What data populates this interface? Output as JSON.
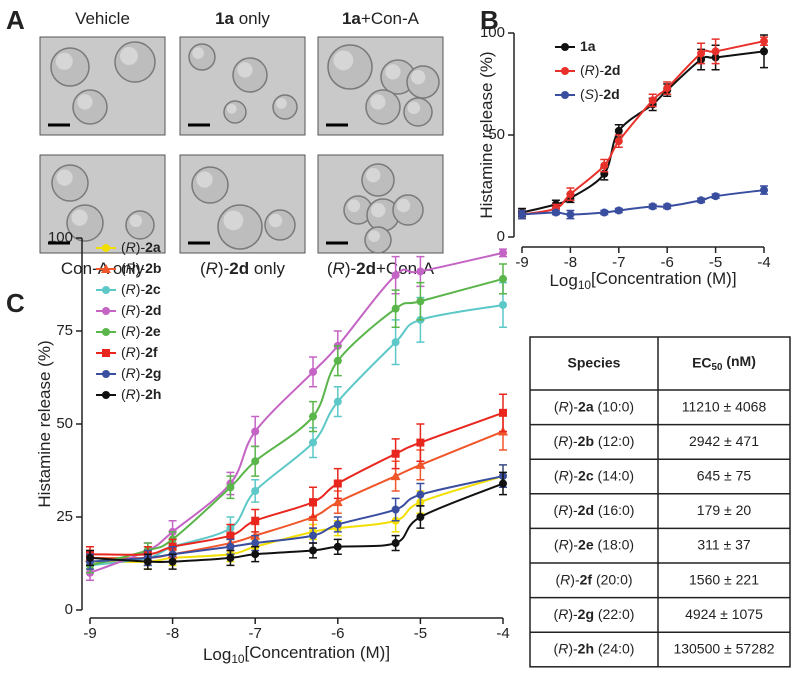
{
  "panel_a": {
    "letter": "A",
    "images": [
      {
        "label": "Vehicle"
      },
      {
        "label": "1a only"
      },
      {
        "label": "1a+Con-A"
      },
      {
        "label": "Con-A only"
      },
      {
        "label": "(R)-2d only"
      },
      {
        "label": "(R)-2d+Con-A"
      }
    ]
  },
  "chart_data": [
    {
      "panel": "B",
      "type": "line",
      "xlabel": "Log10[Concentration (M)]",
      "ylabel": "Histamine release (%)",
      "x": [
        -9,
        -8.3,
        -8,
        -7.3,
        -7,
        -6.3,
        -6,
        -5.3,
        -5,
        -4
      ],
      "xlim": [
        -9,
        -4
      ],
      "xticks": [
        -9,
        -8,
        -7,
        -6,
        -5,
        -4
      ],
      "ylim": [
        0,
        100
      ],
      "yticks": [
        0,
        50,
        100
      ],
      "legend": "upper left",
      "series": [
        {
          "name": "1a",
          "color": "#111111",
          "marker": "circle",
          "values": [
            12,
            16,
            19,
            31,
            52,
            65,
            72,
            87,
            88,
            91
          ],
          "errors": [
            2,
            2,
            2,
            3,
            3,
            3,
            3,
            5,
            6,
            8
          ]
        },
        {
          "name": "(R)-2d",
          "color": "#e8312a",
          "marker": "circle",
          "values": [
            11,
            14,
            21,
            35,
            47,
            67,
            73,
            90,
            91,
            96
          ],
          "errors": [
            2,
            2,
            3,
            3,
            3,
            3,
            3,
            5,
            6,
            2
          ]
        },
        {
          "name": "(S)-2d",
          "color": "#3a4ea0",
          "marker": "circle",
          "values": [
            11,
            12,
            11,
            12,
            13,
            15,
            15,
            18,
            20,
            23
          ],
          "errors": [
            2,
            1,
            2,
            1,
            1,
            1,
            1,
            1,
            1,
            2
          ]
        }
      ]
    },
    {
      "panel": "C",
      "type": "line",
      "xlabel": "Log10[Concentration (M)]",
      "ylabel": "Histamine release (%)",
      "x": [
        -9,
        -8.3,
        -8,
        -7.3,
        -7,
        -6.3,
        -6,
        -5.3,
        -5,
        -4
      ],
      "xlim": [
        -9,
        -4
      ],
      "xticks": [
        -9,
        -8,
        -7,
        -6,
        -5,
        -4
      ],
      "ylim": [
        0,
        100
      ],
      "yticks": [
        0,
        25,
        50,
        75,
        100
      ],
      "legend": "upper left",
      "series": [
        {
          "name": "(R)-2a",
          "color": "#f2df00",
          "marker": "circle",
          "values": [
            13,
            13,
            14,
            15,
            17,
            21,
            22,
            24,
            29,
            36
          ],
          "errors": [
            2,
            2,
            2,
            2,
            2,
            2,
            2,
            3,
            3,
            3
          ]
        },
        {
          "name": "(R)-2b",
          "color": "#f0562a",
          "marker": "triangle",
          "values": [
            14,
            14,
            15,
            18,
            20,
            25,
            29,
            36,
            39,
            48
          ],
          "errors": [
            2,
            2,
            2,
            2,
            3,
            3,
            3,
            4,
            4,
            5
          ]
        },
        {
          "name": "(R)-2c",
          "color": "#5cc8c8",
          "marker": "circle",
          "values": [
            12,
            14,
            17,
            22,
            32,
            45,
            56,
            72,
            78,
            82
          ],
          "errors": [
            2,
            2,
            2,
            3,
            3,
            4,
            4,
            6,
            6,
            6
          ]
        },
        {
          "name": "(R)-2d",
          "color": "#c464c4",
          "marker": "circle",
          "values": [
            10,
            16,
            21,
            34,
            48,
            64,
            71,
            90,
            91,
            96
          ],
          "errors": [
            2,
            2,
            3,
            3,
            4,
            4,
            4,
            5,
            4,
            1
          ]
        },
        {
          "name": "(R)-2e",
          "color": "#5ab54a",
          "marker": "circle",
          "values": [
            12,
            16,
            19,
            33,
            40,
            52,
            67,
            81,
            83,
            89
          ],
          "errors": [
            2,
            2,
            2,
            3,
            4,
            4,
            4,
            5,
            5,
            4
          ]
        },
        {
          "name": "(R)-2f",
          "color": "#e8261e",
          "marker": "square",
          "values": [
            15,
            15,
            17,
            20,
            24,
            29,
            34,
            42,
            45,
            53
          ],
          "errors": [
            2,
            2,
            2,
            3,
            3,
            4,
            4,
            4,
            5,
            5
          ]
        },
        {
          "name": "(R)-2g",
          "color": "#3a4ea0",
          "marker": "circle",
          "values": [
            13,
            14,
            15,
            17,
            18,
            20,
            23,
            27,
            31,
            36
          ],
          "errors": [
            2,
            2,
            2,
            2,
            2,
            2,
            2,
            3,
            3,
            3
          ]
        },
        {
          "name": "(R)-2h",
          "color": "#111111",
          "marker": "circle",
          "values": [
            14,
            13,
            13,
            14,
            15,
            16,
            17,
            18,
            25,
            34
          ],
          "errors": [
            2,
            2,
            2,
            2,
            2,
            2,
            2,
            2,
            3,
            3
          ]
        }
      ]
    }
  ],
  "table": {
    "header": [
      "Species",
      "EC50 (nM)"
    ],
    "rows": [
      [
        "(R)-2a (10:0)",
        "11210 ± 4068"
      ],
      [
        "(R)-2b (12:0)",
        "2942 ± 471"
      ],
      [
        "(R)-2c (14:0)",
        "645 ± 75"
      ],
      [
        "(R)-2d (16:0)",
        "179 ± 20"
      ],
      [
        "(R)-2e (18:0)",
        "311 ± 37"
      ],
      [
        "(R)-2f (20:0)",
        "1560 ± 221"
      ],
      [
        "(R)-2g (22:0)",
        "4924 ± 1075"
      ],
      [
        "(R)-2h (24:0)",
        "130500 ± 57282"
      ]
    ]
  }
}
